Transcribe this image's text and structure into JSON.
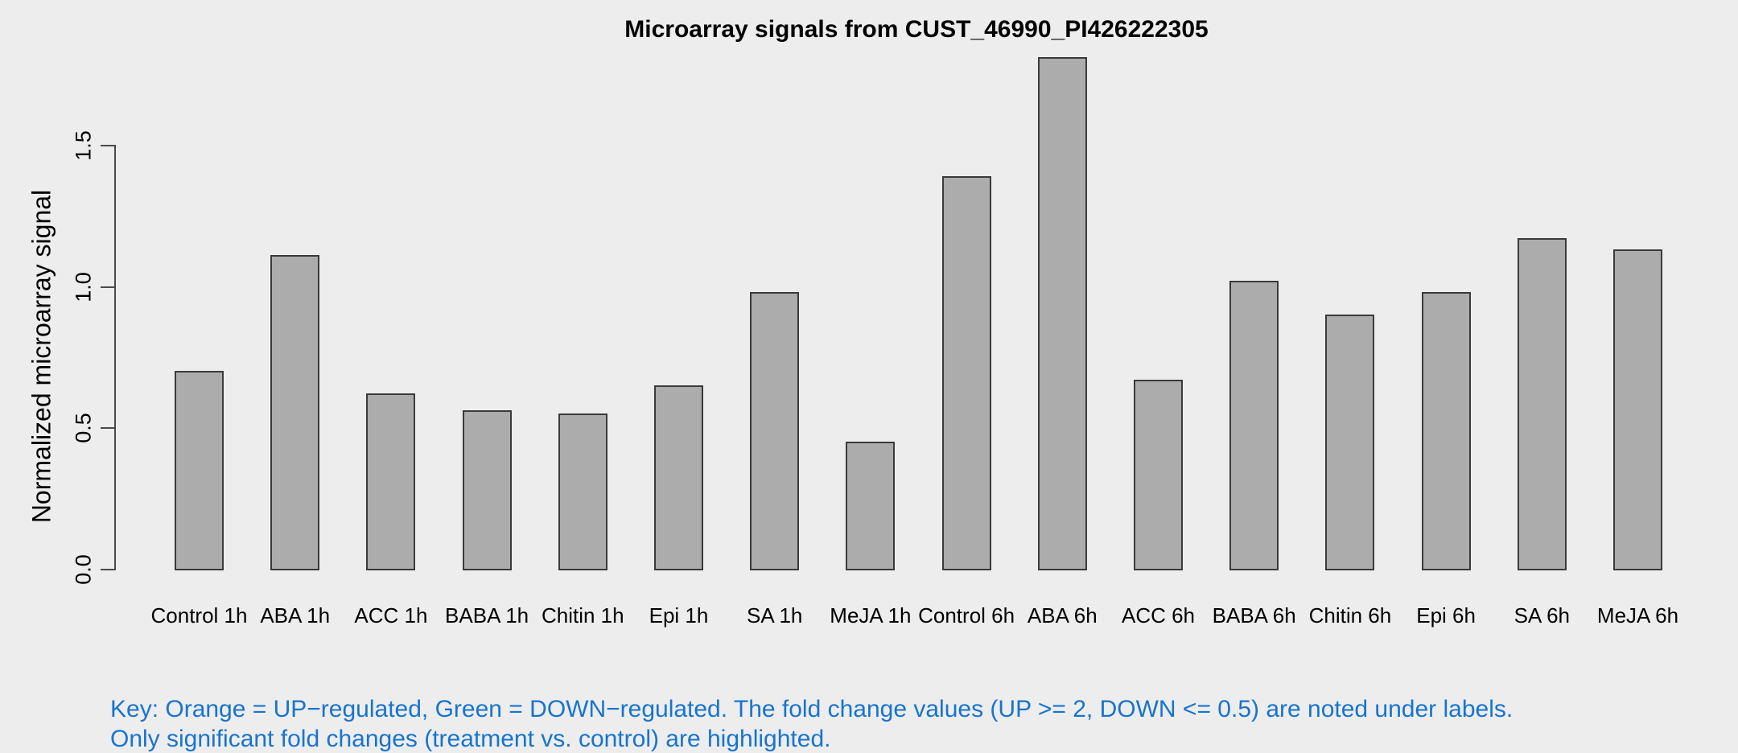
{
  "page": {
    "background": "#EDEDED"
  },
  "chart_data": {
    "type": "bar",
    "title": "Microarray signals from CUST_46990_PI426222305",
    "xlabel": "",
    "ylabel": "Normalized microarray signal",
    "categories": [
      "Control 1h",
      "ABA 1h",
      "ACC 1h",
      "BABA 1h",
      "Chitin 1h",
      "Epi 1h",
      "SA 1h",
      "MeJA 1h",
      "Control 6h",
      "ABA 6h",
      "ACC 6h",
      "BABA 6h",
      "Chitin 6h",
      "Epi 6h",
      "SA 6h",
      "MeJA 6h"
    ],
    "values": [
      0.7,
      1.11,
      0.62,
      0.56,
      0.55,
      0.65,
      0.98,
      0.45,
      1.39,
      1.81,
      0.67,
      1.02,
      0.9,
      0.98,
      1.17,
      1.13
    ],
    "ylim": [
      0,
      1.5
    ],
    "yticks": [
      0,
      0.5,
      1.0,
      1.5
    ],
    "ytick_labels": [
      "0.0",
      "0.5",
      "1.0",
      "1.5"
    ],
    "grid": false,
    "legend": "none",
    "bar_fill": "#ACACAC",
    "bar_border": "#3A3A3A",
    "axis_color": "#4A4A4A"
  },
  "footer_key": {
    "line1": "Key: Orange = UP−regulated, Green = DOWN−regulated. The fold change values (UP >= 2, DOWN <= 0.5) are noted under labels.",
    "line2": "Only significant fold changes (treatment vs. control) are highlighted.",
    "color": "#1874CD"
  }
}
